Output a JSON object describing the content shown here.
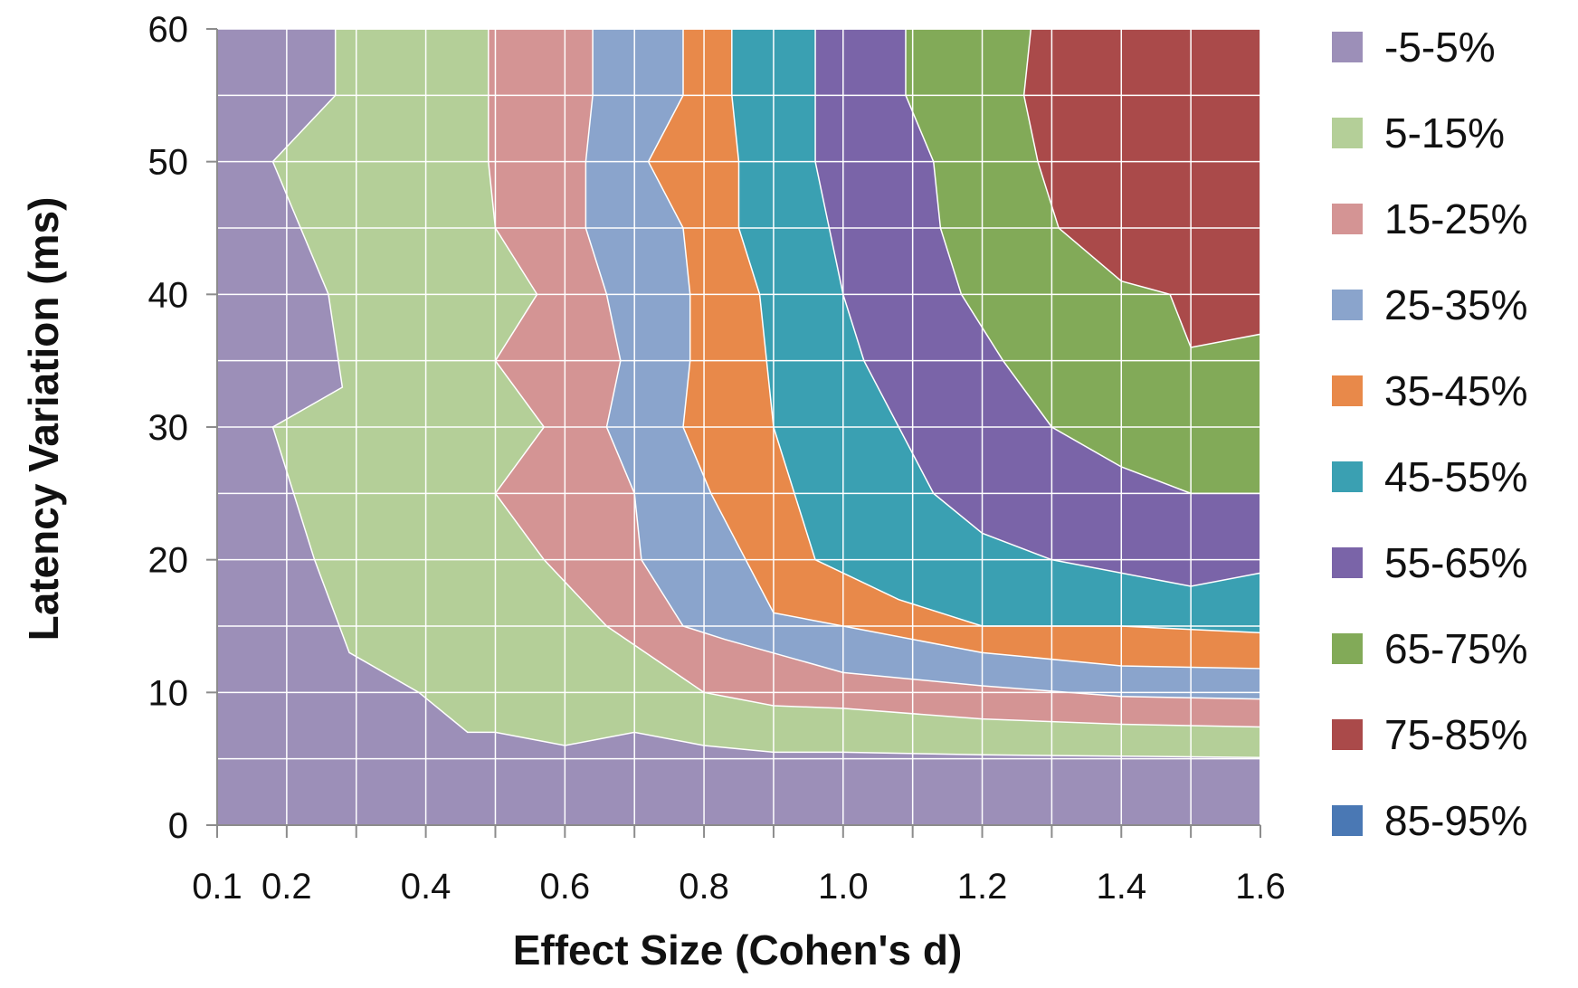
{
  "chart_data": {
    "type": "area",
    "subtype": "contour",
    "title": "",
    "xlabel": "Effect Size (Cohen's d)",
    "ylabel": "Latency Variation (ms)",
    "xlim": [
      0.1,
      1.6
    ],
    "ylim": [
      0,
      60
    ],
    "x_ticks": [
      "0.1",
      "0.2",
      "0.4",
      "0.6",
      "0.8",
      "1.0",
      "1.2",
      "1.4",
      "1.6"
    ],
    "y_ticks": [
      "0",
      "10",
      "20",
      "30",
      "40",
      "50",
      "60"
    ],
    "grid": true,
    "legend_position": "right",
    "x_grid": [
      0.1,
      0.2,
      0.3,
      0.4,
      0.5,
      0.6,
      0.7,
      0.8,
      0.9,
      1.0,
      1.1,
      1.2,
      1.3,
      1.4,
      1.5,
      1.6
    ],
    "legend": [
      {
        "label": "-5-5%",
        "color": "#9c8fb8"
      },
      {
        "label": "5-15%",
        "color": "#b4cf98"
      },
      {
        "label": "15-25%",
        "color": "#d49494"
      },
      {
        "label": "25-35%",
        "color": "#8aa4cc"
      },
      {
        "label": "35-45%",
        "color": "#e8894a"
      },
      {
        "label": "45-55%",
        "color": "#3aa0b2"
      },
      {
        "label": "55-65%",
        "color": "#7a64a8"
      },
      {
        "label": "65-75%",
        "color": "#82aa58"
      },
      {
        "label": "75-85%",
        "color": "#aa4a4a"
      },
      {
        "label": "85-95%",
        "color": "#4a78b4"
      }
    ],
    "boundaries": [
      {
        "lower": "-5-5%",
        "upper": "5-15%",
        "points": [
          [
            0.27,
            60
          ],
          [
            0.27,
            55
          ],
          [
            0.18,
            50
          ],
          [
            0.26,
            40
          ],
          [
            0.28,
            33
          ],
          [
            0.18,
            30
          ],
          [
            0.24,
            20
          ],
          [
            0.29,
            13
          ],
          [
            0.39,
            10
          ],
          [
            0.46,
            7
          ],
          [
            0.5,
            7
          ],
          [
            0.6,
            6
          ],
          [
            0.7,
            7
          ],
          [
            0.8,
            6
          ],
          [
            0.9,
            5.5
          ],
          [
            1.0,
            5.5
          ],
          [
            1.2,
            5.3
          ],
          [
            1.4,
            5.2
          ],
          [
            1.6,
            5.1
          ]
        ]
      },
      {
        "lower": "5-15%",
        "upper": "15-25%",
        "points": [
          [
            0.49,
            60
          ],
          [
            0.49,
            55
          ],
          [
            0.49,
            50
          ],
          [
            0.5,
            45
          ],
          [
            0.56,
            40
          ],
          [
            0.5,
            35
          ],
          [
            0.57,
            30
          ],
          [
            0.5,
            25
          ],
          [
            0.57,
            20
          ],
          [
            0.66,
            15
          ],
          [
            0.8,
            10
          ],
          [
            0.9,
            9
          ],
          [
            1.0,
            8.8
          ],
          [
            1.2,
            8
          ],
          [
            1.4,
            7.6
          ],
          [
            1.6,
            7.4
          ]
        ]
      },
      {
        "lower": "15-25%",
        "upper": "25-35%",
        "points": [
          [
            0.64,
            60
          ],
          [
            0.64,
            55
          ],
          [
            0.63,
            50
          ],
          [
            0.63,
            45
          ],
          [
            0.66,
            40
          ],
          [
            0.68,
            35
          ],
          [
            0.66,
            30
          ],
          [
            0.7,
            25
          ],
          [
            0.71,
            20
          ],
          [
            0.77,
            15
          ],
          [
            0.83,
            14
          ],
          [
            1.0,
            11.5
          ],
          [
            1.2,
            10.5
          ],
          [
            1.4,
            9.7
          ],
          [
            1.6,
            9.5
          ]
        ]
      },
      {
        "lower": "25-35%",
        "upper": "35-45%",
        "points": [
          [
            0.77,
            60
          ],
          [
            0.77,
            55
          ],
          [
            0.72,
            50
          ],
          [
            0.77,
            45
          ],
          [
            0.78,
            40
          ],
          [
            0.78,
            35
          ],
          [
            0.77,
            30
          ],
          [
            0.81,
            25
          ],
          [
            0.86,
            20
          ],
          [
            0.9,
            16
          ],
          [
            1.0,
            15
          ],
          [
            1.2,
            13
          ],
          [
            1.4,
            12
          ],
          [
            1.6,
            11.8
          ]
        ]
      },
      {
        "lower": "35-45%",
        "upper": "45-55%",
        "points": [
          [
            0.84,
            60
          ],
          [
            0.84,
            55
          ],
          [
            0.85,
            50
          ],
          [
            0.85,
            45
          ],
          [
            0.88,
            40
          ],
          [
            0.89,
            35
          ],
          [
            0.9,
            30
          ],
          [
            0.93,
            25
          ],
          [
            0.96,
            20
          ],
          [
            1.08,
            17
          ],
          [
            1.2,
            15
          ],
          [
            1.4,
            15
          ],
          [
            1.6,
            14.5
          ]
        ]
      },
      {
        "lower": "45-55%",
        "upper": "55-65%",
        "points": [
          [
            0.96,
            60
          ],
          [
            0.96,
            55
          ],
          [
            0.96,
            50
          ],
          [
            0.98,
            45
          ],
          [
            1.0,
            40
          ],
          [
            1.03,
            35
          ],
          [
            1.08,
            30
          ],
          [
            1.13,
            25
          ],
          [
            1.2,
            22
          ],
          [
            1.3,
            20
          ],
          [
            1.5,
            18
          ],
          [
            1.6,
            19
          ]
        ]
      },
      {
        "lower": "55-65%",
        "upper": "65-75%",
        "points": [
          [
            1.09,
            60
          ],
          [
            1.09,
            55
          ],
          [
            1.13,
            50
          ],
          [
            1.14,
            45
          ],
          [
            1.17,
            40
          ],
          [
            1.23,
            35
          ],
          [
            1.3,
            30
          ],
          [
            1.4,
            27
          ],
          [
            1.5,
            25
          ],
          [
            1.6,
            25
          ]
        ]
      },
      {
        "lower": "65-75%",
        "upper": "75-85%",
        "points": [
          [
            1.27,
            60
          ],
          [
            1.26,
            55
          ],
          [
            1.28,
            50
          ],
          [
            1.31,
            45
          ],
          [
            1.4,
            41
          ],
          [
            1.47,
            40
          ],
          [
            1.5,
            36
          ],
          [
            1.6,
            37
          ]
        ]
      }
    ]
  }
}
